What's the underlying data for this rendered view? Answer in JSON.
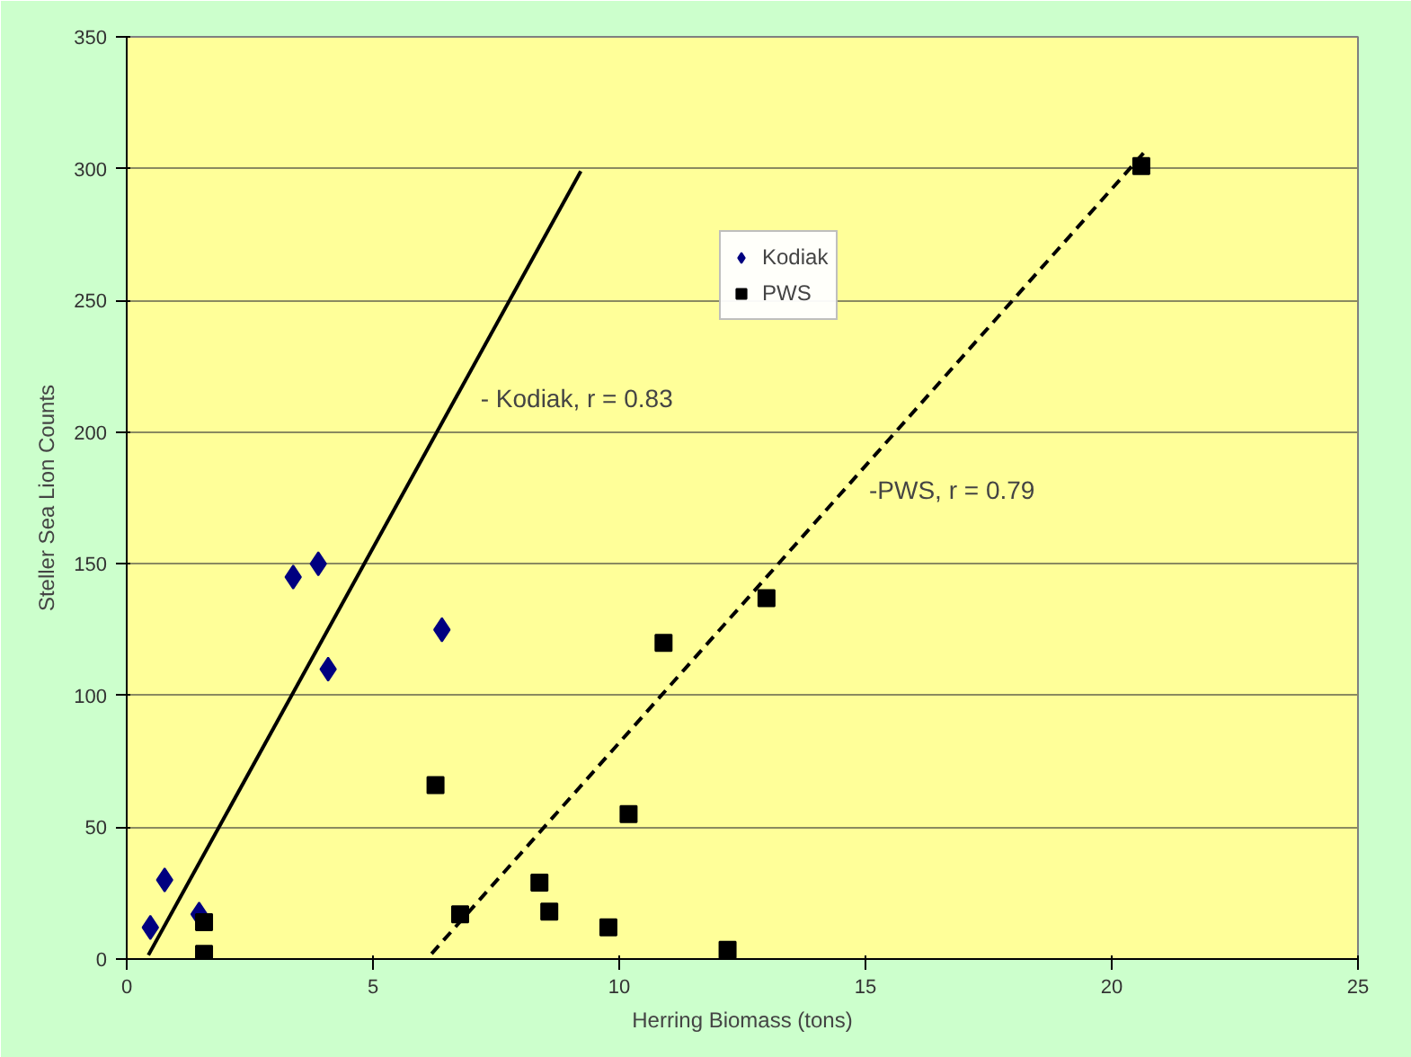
{
  "chart_data": {
    "type": "scatter",
    "xlabel": "Herring Biomass (tons)",
    "ylabel": "Steller Sea Lion Counts",
    "xlim": [
      0,
      25
    ],
    "ylim": [
      0,
      350
    ],
    "xticks": [
      0,
      5,
      10,
      15,
      20,
      25
    ],
    "yticks": [
      0,
      50,
      100,
      150,
      200,
      250,
      300,
      350
    ],
    "grid": "y",
    "legend": "top",
    "series": [
      {
        "name": "Kodiak",
        "color": "#000080",
        "marker": "diamond",
        "x": [
          0.48,
          0.77,
          1.47,
          3.38,
          3.89,
          4.09,
          6.4
        ],
        "values": [
          12,
          30,
          17,
          145,
          150,
          110,
          125
        ]
      },
      {
        "name": "PWS",
        "color": "#000000",
        "marker": "square",
        "x": [
          1.57,
          1.57,
          6.27,
          6.77,
          8.38,
          8.58,
          9.78,
          10.19,
          10.9,
          12.2,
          12.99,
          20.6
        ],
        "values": [
          14,
          2,
          66,
          17,
          29,
          18,
          12,
          55,
          120,
          3.5,
          137,
          301
        ]
      },
      {
        "type": "line",
        "color": "#000000",
        "line_style": "solid",
        "x": [
          0.44,
          9.22
        ],
        "values": [
          1.5,
          299
        ]
      },
      {
        "type": "line",
        "color": "#000000",
        "line_style": "dashed",
        "x": [
          6.19,
          20.7
        ],
        "values": [
          2,
          307
        ]
      }
    ],
    "annotations": [
      "- Kodiak, r = 0.83",
      "-PWS, r = 0.79"
    ]
  }
}
